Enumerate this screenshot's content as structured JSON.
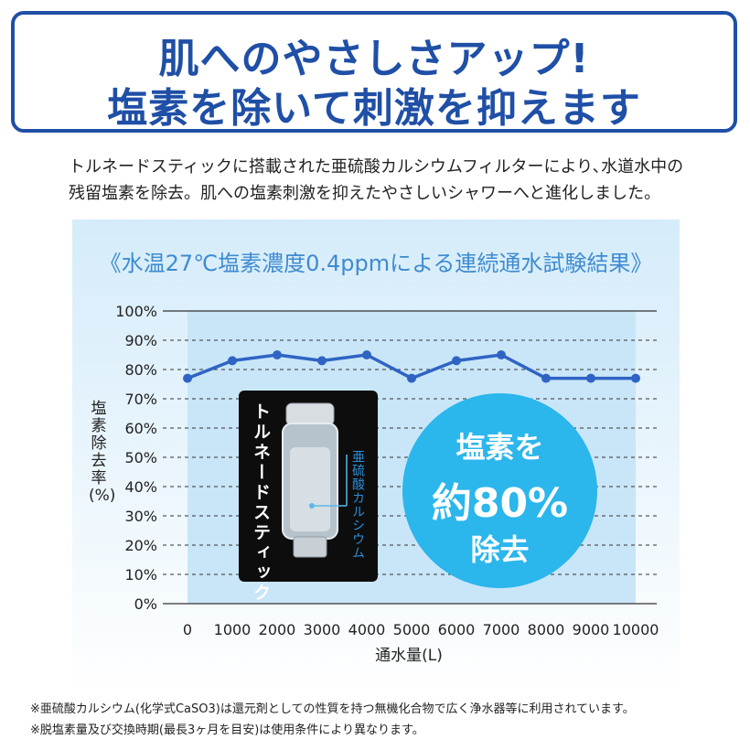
{
  "header": {
    "line1": "肌へのやさしさアップ!",
    "line2": "塩素を除いて刺激を抑えます"
  },
  "intro": {
    "line1": "トルネードスティックに搭載された亜硫酸カルシウムフィルターにより､水道水中の",
    "line2": "残留塩素を除去。肌への塩素刺激を抑えたやさしいシャワーへと進化しました。"
  },
  "chart_data": {
    "type": "line",
    "title": "《水温27℃塩素濃度0.4ppmによる連続通水試験結果》",
    "xlabel": "通水量(L)",
    "ylabel": "塩素除去率(%)",
    "x": [
      0,
      1000,
      2000,
      3000,
      4000,
      5000,
      6000,
      7000,
      8000,
      9000,
      10000
    ],
    "y": [
      77,
      83,
      85,
      83,
      85,
      77,
      83,
      85,
      77,
      77,
      77
    ],
    "x_tick_labels": [
      "0",
      "1000",
      "2000",
      "3000",
      "4000",
      "5000",
      "6000",
      "7000",
      "8000",
      "9000",
      "10000"
    ],
    "y_tick_labels": [
      "0%",
      "10%",
      "20%",
      "30%",
      "40%",
      "50%",
      "60%",
      "70%",
      "80%",
      "90%",
      "100%"
    ],
    "ylim": [
      0,
      100
    ],
    "xlim": [
      0,
      10000
    ],
    "grid": "horizontal-dashed",
    "line_color": "#2f64c4"
  },
  "product": {
    "name": "トルネードスティック",
    "filter_label": "亜硫酸カルシウム"
  },
  "badge": {
    "line1": "塩素を",
    "line2": "約80%",
    "line3": "除去",
    "color": "#2bb6ec"
  },
  "notes": [
    "※亜硫酸カルシウム(化学式CaSO3)は還元剤としての性質を持つ無機化合物で広く浄水器等に利用されています。",
    "※脱塩素量及び交換時期(最長3ヶ月を目安)は使用条件により異なります。"
  ],
  "colors": {
    "header_blue": "#1f4fa6",
    "title_blue": "#3f8bd0",
    "plot_bg": "#c9e6f8"
  }
}
